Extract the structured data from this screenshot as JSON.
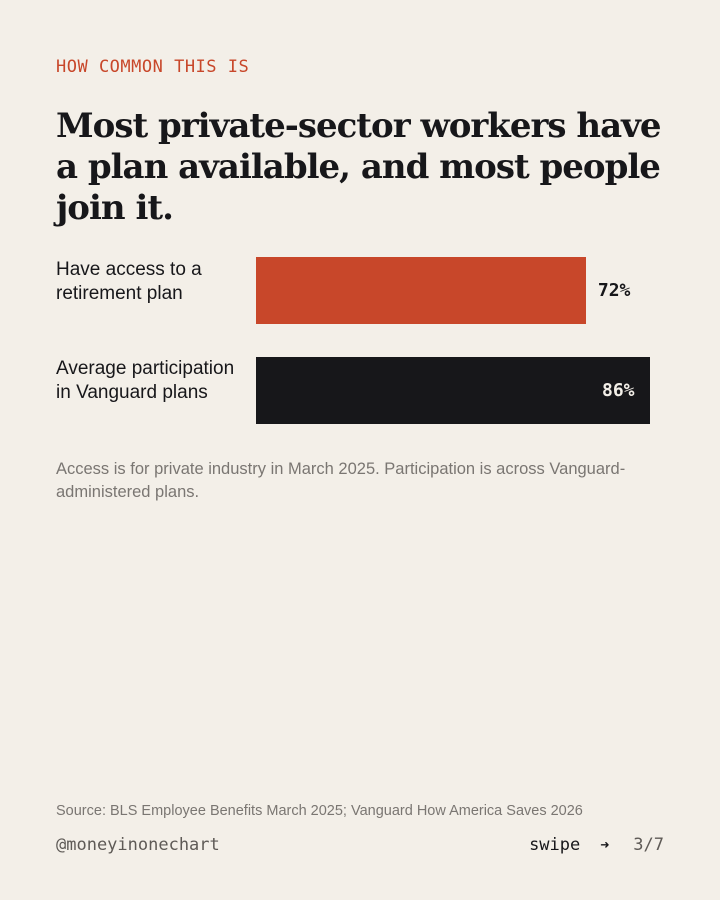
{
  "header": {
    "eyebrow": "HOW COMMON THIS IS",
    "title": "Most private-sector workers have a plan available, and most people join it."
  },
  "chart_data": {
    "type": "bar",
    "orientation": "horizontal",
    "categories": [
      "Have access to a retirement plan",
      "Average participation in Vanguard plans"
    ],
    "values": [
      72,
      86
    ],
    "value_labels": [
      "72%",
      "86%"
    ],
    "colors": [
      "#c8472a",
      "#17171a"
    ],
    "xlim": [
      0,
      100
    ],
    "grid": false
  },
  "note": "Access is for private industry in March 2025. Participation is across Vanguard-administered plans.",
  "source": "Source: BLS Employee Benefits March 2025; Vanguard How America Saves 2026",
  "footer": {
    "handle": "@moneyinonechart",
    "swipe_label": "swipe",
    "arrow_icon": "right-arrow-icon",
    "page": "3/7"
  }
}
